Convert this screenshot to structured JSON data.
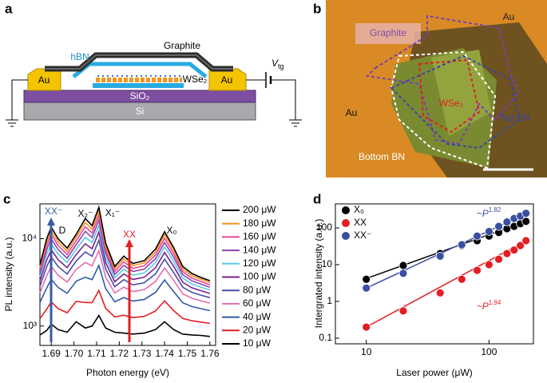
{
  "panel_labels": [
    "a",
    "b",
    "c",
    "d"
  ],
  "schematic": {
    "graphite": "Graphite",
    "hbn": "hBN",
    "wse2": "WSe₂",
    "au_left": "Au",
    "au_right": "Au",
    "sio2": "SiO₂",
    "si": "Si",
    "gate": {
      "text": "V",
      "sub": "tg"
    }
  },
  "micrograph": {
    "graphite": "Graphite",
    "au_top": "Au",
    "au_left": "Au",
    "wse2": "WSe₂",
    "top_bn": "Top BN",
    "bottom_bn": "Bottom BN"
  },
  "chart_data": [
    {
      "type": "line",
      "xlabel": "Photon energy (eV)",
      "ylabel": "PL intensity (a.u.)",
      "x": [
        1.685,
        1.688,
        1.69,
        1.693,
        1.697,
        1.701,
        1.705,
        1.708,
        1.711,
        1.714,
        1.718,
        1.722,
        1.726,
        1.731,
        1.736,
        1.74,
        1.744,
        1.748,
        1.752,
        1.756,
        1.76
      ],
      "xlim": [
        1.685,
        1.7625
      ],
      "xticks": [
        1.69,
        {
          "value": 1.7,
          "label": "1.70"
        },
        1.71,
        1.72,
        1.73,
        1.74,
        1.75,
        1.76
      ],
      "ylim": [
        600,
        25000
      ],
      "yscale": "log",
      "yticks": [
        {
          "value": 1000,
          "label": "10³"
        },
        {
          "value": 10000,
          "label": "10⁴"
        }
      ],
      "legend": "right",
      "series": [
        {
          "name": "200 μW",
          "color": "#000000",
          "values": [
            5000,
            10000,
            13500,
            10000,
            7800,
            11200,
            17000,
            14100,
            22900,
            8900,
            4800,
            6300,
            5200,
            5600,
            7600,
            12000,
            7900,
            4800,
            4000,
            3600,
            3300
          ]
        },
        {
          "name": "180 μW",
          "color": "#f7931e",
          "values": [
            4700,
            9180,
            12300,
            9200,
            7180,
            10400,
            15300,
            12900,
            20700,
            8240,
            4510,
            5870,
            4920,
            5260,
            7050,
            11100,
            7360,
            4500,
            3770,
            3440,
            3150
          ]
        },
        {
          "name": "160 μW",
          "color": "#e8449a",
          "values": [
            4380,
            8360,
            11200,
            8380,
            6590,
            9460,
            13700,
            11600,
            18500,
            7550,
            4220,
            5430,
            4570,
            4890,
            6490,
            10100,
            6760,
            4200,
            3530,
            3240,
            2970
          ]
        },
        {
          "name": "140 μW",
          "color": "#8e44ad",
          "values": [
            4030,
            7500,
            9950,
            7520,
            5970,
            8530,
            12100,
            10300,
            16300,
            6840,
            3900,
            4950,
            4210,
            4480,
            5900,
            9060,
            6140,
            3870,
            3290,
            3020,
            2780
          ]
        },
        {
          "name": "120 μW",
          "color": "#5bc8e8",
          "values": [
            3660,
            6640,
            8730,
            6650,
            5330,
            7590,
            10400,
            9020,
            14100,
            6100,
            3570,
            4470,
            3820,
            4060,
            5300,
            8040,
            5500,
            3540,
            3030,
            2790,
            2580
          ]
        },
        {
          "name": "100 μW",
          "color": "#7b1f8f",
          "values": [
            3270,
            5710,
            7480,
            5750,
            4660,
            6590,
            8730,
            7660,
            11900,
            5320,
            3210,
            3950,
            3410,
            3610,
            4650,
            6950,
            4820,
            3180,
            2740,
            2540,
            2360
          ]
        },
        {
          "name": "80 μW",
          "color": "#4b4ba8",
          "values": [
            2850,
            4780,
            6170,
            4810,
            3940,
            5550,
            7050,
            6280,
            9570,
            4500,
            2820,
            3400,
            2960,
            3130,
            3960,
            5820,
            4090,
            2780,
            2430,
            2260,
            2110
          ]
        },
        {
          "name": "60 μW",
          "color": "#e36fae",
          "values": [
            2390,
            3780,
            4830,
            3820,
            3190,
            4450,
            5350,
            4880,
            7280,
            3630,
            2390,
            2790,
            2480,
            2610,
            3240,
            4630,
            3330,
            2340,
            2080,
            1950,
            1830
          ]
        },
        {
          "name": "40 μW",
          "color": "#2f5aa8",
          "values": [
            1860,
            2730,
            3420,
            2770,
            2370,
            3260,
            3620,
            3400,
            4940,
            2690,
            1890,
            2120,
            1930,
            2010,
            2430,
            3370,
            2480,
            1850,
            1670,
            1580,
            1500
          ]
        },
        {
          "name": "20 μW",
          "color": "#e31e24",
          "values": [
            1220,
            1560,
            1890,
            1580,
            1420,
            1910,
            1860,
            1850,
            2550,
            1600,
            1270,
            1330,
            1250,
            1290,
            1490,
            1940,
            1500,
            1220,
            1150,
            1110,
            1070
          ]
        },
        {
          "name": "10 μW",
          "color": "#000000",
          "values": [
            790,
            890,
            1050,
            910,
            850,
            1120,
            950,
            1000,
            1320,
            950,
            850,
            830,
            810,
            830,
            910,
            1120,
            910,
            810,
            790,
            780,
            760
          ]
        }
      ],
      "annotations": [
        {
          "text": "XX⁻",
          "color": "#3a5ba8"
        },
        {
          "text": "D",
          "color": "#000000"
        },
        {
          "text": "X₂⁻",
          "color": "#000000"
        },
        {
          "text": "X₁⁻",
          "color": "#000000"
        },
        {
          "text": "XX",
          "color": "#e31e24"
        },
        {
          "text": "X₀",
          "color": "#000000"
        }
      ]
    },
    {
      "type": "scatter",
      "xlabel": "Laser power (μW)",
      "ylabel": "Intergrated intensity (a.u.)",
      "x": [
        10,
        20,
        40,
        60,
        80,
        100,
        120,
        140,
        160,
        180,
        200
      ],
      "xlim": [
        5.6,
        230
      ],
      "xscale": "log",
      "xticks": [
        10,
        100
      ],
      "ylim": [
        0.07,
        450
      ],
      "yscale": "log",
      "yticks": [
        0.1,
        1,
        10,
        100
      ],
      "legend": "upper left",
      "fit_x": [
        10,
        200
      ],
      "series": [
        {
          "name": "X₀",
          "color": "#000000",
          "values": [
            4,
            9.5,
            20,
            33,
            45,
            60,
            75,
            95,
            110,
            130,
            150
          ],
          "fit_values": [
            4.2,
            150
          ]
        },
        {
          "name": "XX",
          "color": "#e31e24",
          "values": [
            0.2,
            0.55,
            1.7,
            4,
            7,
            10,
            14,
            20,
            25,
            33,
            45
          ],
          "fit_values": [
            0.2,
            45
          ]
        },
        {
          "name": "XX⁻",
          "color": "#3a4fa0",
          "values": [
            2.3,
            5.8,
            17,
            35,
            60,
            80,
            110,
            145,
            180,
            210,
            250
          ],
          "fit_values": [
            2.3,
            245
          ]
        }
      ],
      "annotations": [
        {
          "text": "~P",
          "sup": "1.82",
          "color": "#3a4fa0"
        },
        {
          "text": "~P",
          "sup": "1.94",
          "color": "#e31e24"
        }
      ]
    }
  ]
}
